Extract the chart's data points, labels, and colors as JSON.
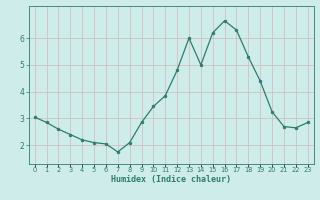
{
  "x": [
    0,
    1,
    2,
    3,
    4,
    5,
    6,
    7,
    8,
    9,
    10,
    11,
    12,
    13,
    14,
    15,
    16,
    17,
    18,
    19,
    20,
    21,
    22,
    23
  ],
  "y": [
    3.05,
    2.85,
    2.6,
    2.4,
    2.2,
    2.1,
    2.05,
    1.75,
    2.1,
    2.85,
    3.45,
    3.85,
    4.8,
    6.0,
    5.0,
    6.2,
    6.65,
    6.3,
    5.3,
    4.4,
    3.25,
    2.7,
    2.65,
    2.85
  ],
  "xlabel": "Humidex (Indice chaleur)",
  "bg_color": "#ceecea",
  "grid_color": "#c0dedd",
  "line_color": "#2e7d6e",
  "marker_color": "#2e7d6e",
  "tick_label_color": "#2e7d6e",
  "xlabel_color": "#2e7d6e",
  "xlim": [
    -0.5,
    23.5
  ],
  "ylim": [
    1.3,
    7.2
  ],
  "yticks": [
    2,
    3,
    4,
    5,
    6
  ],
  "xtick_labels": [
    "0",
    "1",
    "2",
    "3",
    "4",
    "5",
    "6",
    "7",
    "8",
    "9",
    "10",
    "11",
    "12",
    "13",
    "14",
    "15",
    "16",
    "17",
    "18",
    "19",
    "20",
    "21",
    "22",
    "23"
  ]
}
